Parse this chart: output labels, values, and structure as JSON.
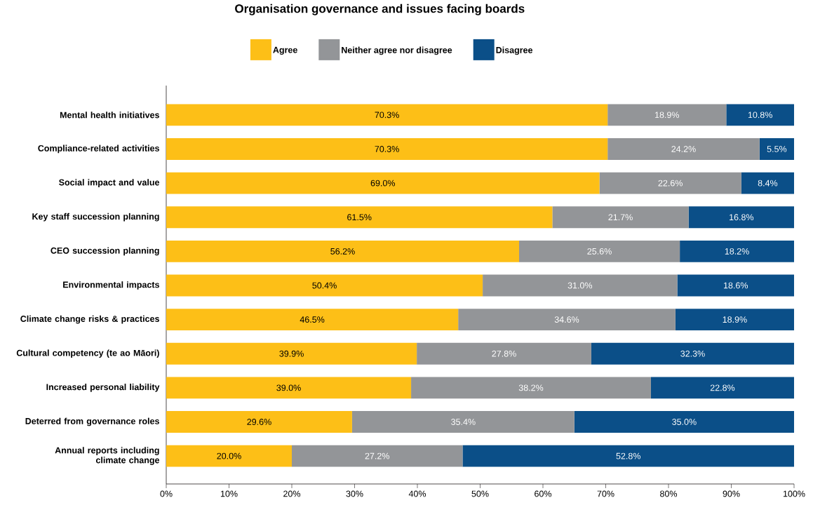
{
  "chart_data": {
    "type": "bar",
    "orientation": "horizontal",
    "stacked": true,
    "title": "Organisation governance and issues facing boards",
    "categories": [
      "Mental health initiatives",
      "Compliance-related activities",
      "Social impact and value",
      "Key staff succession planning",
      "CEO succession planning",
      "Environmental impacts",
      "Climate change risks & practices",
      "Cultural competency (te ao Māori)",
      "Increased personal liability",
      "Deterred from governance roles",
      "Annual reports including climate change"
    ],
    "series": [
      {
        "name": "Agree",
        "color": "#fdbf17",
        "values": [
          70.3,
          70.3,
          69.0,
          61.5,
          56.2,
          50.4,
          46.5,
          39.9,
          39.0,
          29.6,
          20.0
        ],
        "value_labels": [
          "70.3%",
          "70.3%",
          "69.0%",
          "61.5%",
          "56.2%",
          "50.4%",
          "46.5%",
          "39.9%",
          "39.0%",
          "29.6%",
          "20.0%"
        ]
      },
      {
        "name": "Neither agree nor disagree",
        "color": "#939598",
        "values": [
          18.9,
          24.2,
          22.6,
          21.7,
          25.6,
          31.0,
          34.6,
          27.8,
          38.2,
          35.4,
          27.2
        ],
        "value_labels": [
          "18.9%",
          "24.2%",
          "22.6%",
          "21.7%",
          "25.6%",
          "31.0%",
          "34.6%",
          "27.8%",
          "38.2%",
          "35.4%",
          "27.2%"
        ]
      },
      {
        "name": "Disagree",
        "color": "#0b4f88",
        "values": [
          10.8,
          5.5,
          8.4,
          16.8,
          18.2,
          18.6,
          18.9,
          32.3,
          22.8,
          35.0,
          52.8
        ],
        "value_labels": [
          "10.8%",
          "5.5%",
          "8.4%",
          "16.8%",
          "18.2%",
          "18.6%",
          "18.9%",
          "32.3%",
          "22.8%",
          "35.0%",
          "52.8%"
        ]
      }
    ],
    "xlim": [
      0,
      100
    ],
    "xticks": [
      {
        "value": 0,
        "label": "0%"
      },
      {
        "value": 10,
        "label": "10%"
      },
      {
        "value": 20,
        "label": "20%"
      },
      {
        "value": 30,
        "label": "30%"
      },
      {
        "value": 40,
        "label": "40%"
      },
      {
        "value": 50,
        "label": "50%"
      },
      {
        "value": 60,
        "label": "60%"
      },
      {
        "value": 70,
        "label": "70%"
      },
      {
        "value": 80,
        "label": "80%"
      },
      {
        "value": 90,
        "label": "90%"
      },
      {
        "value": 100,
        "label": "100%"
      }
    ],
    "grid": false,
    "legend": "top"
  }
}
